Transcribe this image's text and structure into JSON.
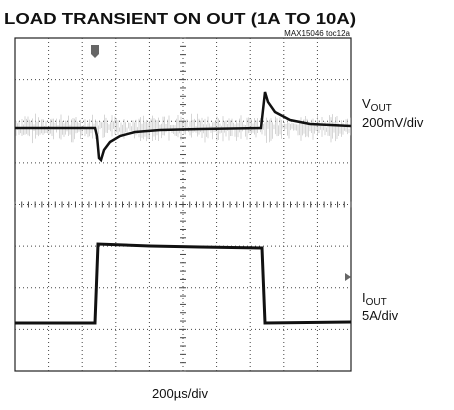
{
  "chart_data": {
    "type": "oscilloscope",
    "title": "LOAD TRANSIENT ON OUT (1A TO 10A)",
    "source": "MAX15046 toc12a",
    "channels": [
      {
        "name": "V",
        "subscript": "OUT",
        "scale": "200mV/div"
      },
      {
        "name": "I",
        "subscript": "OUT",
        "scale": "5A/div"
      }
    ],
    "time_scale": "200µs/div"
  }
}
